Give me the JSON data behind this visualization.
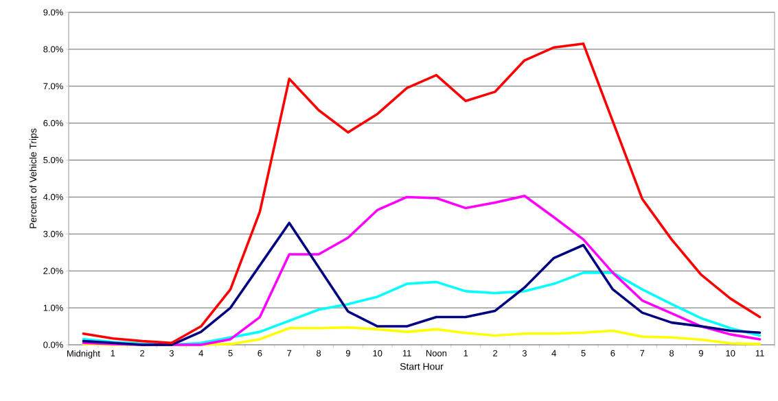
{
  "chart_data": {
    "type": "line",
    "xlabel": "Start Hour",
    "ylabel": "Percent of Vehicle Trips",
    "categories": [
      "Midnight",
      "1",
      "2",
      "3",
      "4",
      "5",
      "6",
      "7",
      "8",
      "9",
      "10",
      "11",
      "Noon",
      "1",
      "2",
      "3",
      "4",
      "5",
      "6",
      "7",
      "8",
      "9",
      "10",
      "11"
    ],
    "series": [
      {
        "color": "#ffff00",
        "values": [
          0.02,
          0.0,
          0.0,
          0.0,
          0.0,
          0.02,
          0.15,
          0.45,
          0.45,
          0.47,
          0.42,
          0.35,
          0.42,
          0.32,
          0.25,
          0.3,
          0.3,
          0.33,
          0.38,
          0.22,
          0.2,
          0.14,
          0.04,
          0.02
        ]
      },
      {
        "color": "#00ffff",
        "values": [
          0.15,
          0.08,
          0.03,
          0.0,
          0.05,
          0.2,
          0.35,
          0.65,
          0.95,
          1.1,
          1.3,
          1.65,
          1.7,
          1.45,
          1.4,
          1.45,
          1.65,
          1.95,
          1.95,
          1.5,
          1.1,
          0.72,
          0.45,
          0.25
        ]
      },
      {
        "color": "#ff00ff",
        "values": [
          0.05,
          0.02,
          0.0,
          0.0,
          0.0,
          0.15,
          0.75,
          2.45,
          2.45,
          2.9,
          3.65,
          4.0,
          3.97,
          3.7,
          3.85,
          4.03,
          3.45,
          2.85,
          1.95,
          1.2,
          0.85,
          0.5,
          0.28,
          0.15
        ]
      },
      {
        "color": "#000080",
        "values": [
          0.1,
          0.05,
          0.0,
          0.0,
          0.35,
          1.0,
          2.15,
          3.3,
          2.1,
          0.9,
          0.5,
          0.5,
          0.75,
          0.75,
          0.92,
          1.55,
          2.35,
          2.7,
          1.5,
          0.87,
          0.6,
          0.5,
          0.38,
          0.33
        ]
      },
      {
        "color": "#ff0000",
        "values": [
          0.3,
          0.17,
          0.1,
          0.05,
          0.5,
          1.5,
          3.6,
          7.2,
          6.35,
          5.75,
          6.25,
          6.95,
          7.3,
          6.6,
          6.85,
          7.7,
          8.05,
          8.15,
          6.05,
          3.95,
          2.85,
          1.9,
          1.25,
          0.75
        ]
      }
    ],
    "ylim": [
      0,
      9
    ],
    "yticks": [
      {
        "value": 0,
        "label": "0.0%"
      },
      {
        "value": 1,
        "label": "1.0%"
      },
      {
        "value": 2,
        "label": "2.0%"
      },
      {
        "value": 3,
        "label": "3.0%"
      },
      {
        "value": 4,
        "label": "4.0%"
      },
      {
        "value": 5,
        "label": "5.0%"
      },
      {
        "value": 6,
        "label": "6.0%"
      },
      {
        "value": 7,
        "label": "7.0%"
      },
      {
        "value": 8,
        "label": "8.0%"
      },
      {
        "value": 9,
        "label": "9.0%"
      }
    ],
    "grid": "y",
    "marker": "none",
    "line_style": "solid"
  }
}
